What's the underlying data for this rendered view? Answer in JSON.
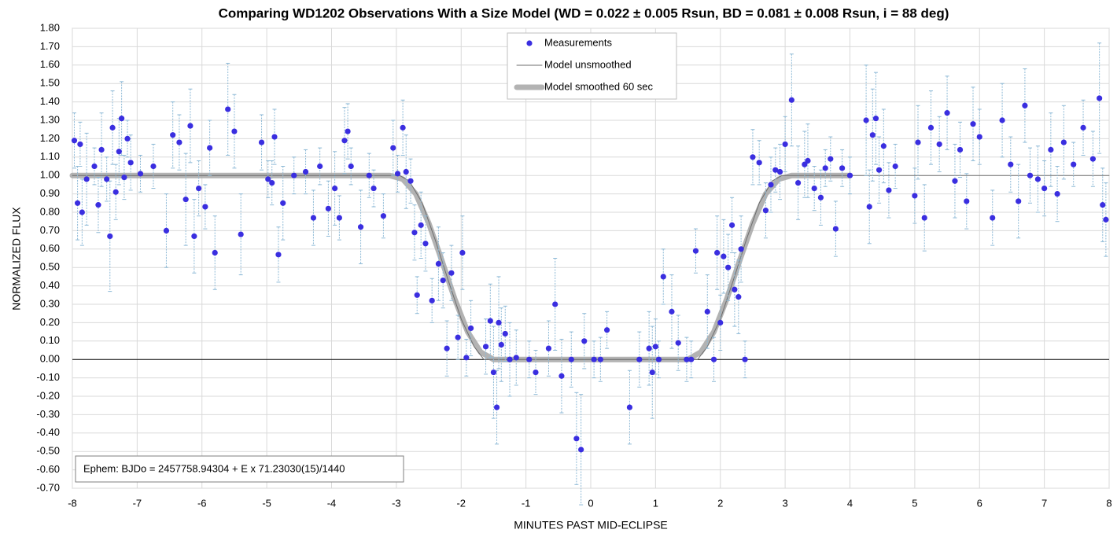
{
  "chart_data": {
    "type": "scatter",
    "title": "Comparing WD1202 Observations With a Size Model (WD = 0.022 ± 0.005 Rsun, BD = 0.081 ± 0.008 Rsun, i = 88 deg)",
    "x_label": "MINUTES PAST MID-ECLIPSE",
    "y_label": "NORMALIZED FLUX",
    "annotation": "Ephem: BJDo = 2457758.94304 + E x 71.23030(15)/1440",
    "xlim": [
      -8,
      8
    ],
    "ylim": [
      -0.7,
      1.8
    ],
    "xticks": [
      -8,
      -7,
      -6,
      -5,
      -4,
      -3,
      -2,
      -1,
      0,
      1,
      2,
      3,
      4,
      5,
      6,
      7,
      8
    ],
    "yticks": [
      {
        "value": -0.7,
        "label": "-0.70"
      },
      {
        "value": -0.6,
        "label": "-0.60"
      },
      {
        "value": -0.5,
        "label": "-0.50"
      },
      {
        "value": -0.4,
        "label": "-0.40"
      },
      {
        "value": -0.3,
        "label": "-0.30"
      },
      {
        "value": -0.2,
        "label": "-0.20"
      },
      {
        "value": -0.1,
        "label": "-0.10"
      },
      {
        "value": 0,
        "label": "0.00"
      },
      {
        "value": 0.1,
        "label": "0.10"
      },
      {
        "value": 0.2,
        "label": "0.20"
      },
      {
        "value": 0.3,
        "label": "0.30"
      },
      {
        "value": 0.4,
        "label": "0.40"
      },
      {
        "value": 0.5,
        "label": "0.50"
      },
      {
        "value": 0.6,
        "label": "0.60"
      },
      {
        "value": 0.7,
        "label": "0.70"
      },
      {
        "value": 0.8,
        "label": "0.80"
      },
      {
        "value": 0.9,
        "label": "0.90"
      },
      {
        "value": 1,
        "label": "1.00"
      },
      {
        "value": 1.1,
        "label": "1.10"
      },
      {
        "value": 1.2,
        "label": "1.20"
      },
      {
        "value": 1.3,
        "label": "1.30"
      },
      {
        "value": 1.4,
        "label": "1.40"
      },
      {
        "value": 1.5,
        "label": "1.50"
      },
      {
        "value": 1.6,
        "label": "1.60"
      },
      {
        "value": 1.7,
        "label": "1.70"
      },
      {
        "value": 1.8,
        "label": "1.80"
      }
    ],
    "grid": true,
    "legend": "top",
    "series": [
      {
        "name": "Measurements",
        "color": "#3a2ee0",
        "error_color": "#8db9d6",
        "x": [
          -7.97,
          -7.92,
          -7.88,
          -7.85,
          -7.78,
          -7.66,
          -7.6,
          -7.55,
          -7.47,
          -7.42,
          -7.38,
          -7.33,
          -7.28,
          -7.24,
          -7.2,
          -7.15,
          -7.1,
          -6.95,
          -6.75,
          -6.55,
          -6.45,
          -6.35,
          -6.25,
          -6.18,
          -6.12,
          -6.05,
          -5.95,
          -5.88,
          -5.8,
          -5.6,
          -5.5,
          -5.4,
          -5.08,
          -4.98,
          -4.92,
          -4.88,
          -4.82,
          -4.75,
          -4.58,
          -4.4,
          -4.28,
          -4.18,
          -4.05,
          -3.95,
          -3.88,
          -3.8,
          -3.75,
          -3.7,
          -3.55,
          -3.42,
          -3.35,
          -3.2,
          -3.05,
          -2.98,
          -2.9,
          -2.85,
          -2.78,
          -2.72,
          -2.68,
          -2.62,
          -2.55,
          -2.45,
          -2.35,
          -2.28,
          -2.22,
          -2.15,
          -2.05,
          -1.98,
          -1.92,
          -1.85,
          -1.62,
          -1.55,
          -1.5,
          -1.45,
          -1.42,
          -1.38,
          -1.32,
          -1.25,
          -1.15,
          -0.95,
          -0.85,
          -0.65,
          -0.55,
          -0.45,
          -0.3,
          -0.22,
          -0.15,
          -0.1,
          0.05,
          0.15,
          0.25,
          0.6,
          0.75,
          0.9,
          0.95,
          1.0,
          1.05,
          1.12,
          1.25,
          1.35,
          1.48,
          1.55,
          1.62,
          1.8,
          1.9,
          1.95,
          2.0,
          2.05,
          2.12,
          2.18,
          2.22,
          2.28,
          2.32,
          2.38,
          2.5,
          2.6,
          2.7,
          2.78,
          2.85,
          2.92,
          3.0,
          3.1,
          3.2,
          3.3,
          3.35,
          3.45,
          3.55,
          3.62,
          3.7,
          3.78,
          3.88,
          4.0,
          4.25,
          4.3,
          4.35,
          4.4,
          4.45,
          4.52,
          4.6,
          4.7,
          5.0,
          5.05,
          5.15,
          5.25,
          5.38,
          5.5,
          5.62,
          5.7,
          5.8,
          5.9,
          6.0,
          6.2,
          6.35,
          6.48,
          6.6,
          6.7,
          6.78,
          6.9,
          7.0,
          7.1,
          7.2,
          7.3,
          7.45,
          7.6,
          7.75,
          7.85,
          7.9,
          7.95
        ],
        "values": [
          1.19,
          0.85,
          1.17,
          0.8,
          0.98,
          1.05,
          0.84,
          1.14,
          0.98,
          0.67,
          1.26,
          0.91,
          1.13,
          1.31,
          0.99,
          1.2,
          1.07,
          1.01,
          1.05,
          0.7,
          1.22,
          1.18,
          0.87,
          1.27,
          0.67,
          0.93,
          0.83,
          1.15,
          0.58,
          1.36,
          1.24,
          0.68,
          1.18,
          0.98,
          0.96,
          1.21,
          0.57,
          0.85,
          1.0,
          1.02,
          0.77,
          1.05,
          0.82,
          0.93,
          0.77,
          1.19,
          1.24,
          1.05,
          0.72,
          1.0,
          0.93,
          0.78,
          1.15,
          1.01,
          1.26,
          1.02,
          0.97,
          0.69,
          0.35,
          0.73,
          0.63,
          0.32,
          0.52,
          0.43,
          0.06,
          0.47,
          0.12,
          0.58,
          0.01,
          0.17,
          0.07,
          0.21,
          -0.07,
          -0.26,
          0.2,
          0.08,
          0.14,
          0.0,
          0.01,
          0.0,
          -0.07,
          0.06,
          0.3,
          -0.09,
          0.0,
          -0.43,
          -0.49,
          0.1,
          0.0,
          0.0,
          0.16,
          -0.26,
          0.0,
          0.06,
          -0.07,
          0.07,
          0.0,
          0.45,
          0.26,
          0.09,
          0.0,
          0.0,
          0.59,
          0.26,
          0.0,
          0.58,
          0.2,
          0.56,
          0.5,
          0.73,
          0.38,
          0.34,
          0.6,
          0.0,
          1.1,
          1.07,
          0.81,
          0.95,
          1.03,
          1.02,
          1.17,
          1.41,
          0.96,
          1.06,
          1.08,
          0.93,
          0.88,
          1.04,
          1.09,
          0.71,
          1.04,
          1.0,
          1.3,
          0.83,
          1.22,
          1.31,
          1.03,
          1.16,
          0.92,
          1.05,
          0.89,
          1.18,
          0.77,
          1.26,
          1.17,
          1.34,
          0.97,
          1.14,
          0.86,
          1.28,
          1.21,
          0.77,
          1.3,
          1.06,
          0.86,
          1.38,
          1.0,
          0.98,
          0.93,
          1.14,
          0.9,
          1.18,
          1.06,
          1.26,
          1.09,
          1.42,
          0.84,
          0.76
        ],
        "errors": [
          0.15,
          0.2,
          0.12,
          0.18,
          0.25,
          0.1,
          0.15,
          0.2,
          0.12,
          0.3,
          0.2,
          0.15,
          0.18,
          0.2,
          0.12,
          0.1,
          0.15,
          0.1,
          0.12,
          0.2,
          0.18,
          0.15,
          0.25,
          0.2,
          0.2,
          0.15,
          0.12,
          0.15,
          0.2,
          0.25,
          0.2,
          0.22,
          0.15,
          0.1,
          0.12,
          0.15,
          0.15,
          0.2,
          0.1,
          0.12,
          0.15,
          0.1,
          0.15,
          0.2,
          0.12,
          0.18,
          0.15,
          0.1,
          0.2,
          0.12,
          0.1,
          0.12,
          0.15,
          0.1,
          0.15,
          0.2,
          0.12,
          0.15,
          0.1,
          0.18,
          0.15,
          0.12,
          0.2,
          0.15,
          0.15,
          0.15,
          0.12,
          0.2,
          0.1,
          0.15,
          0.15,
          0.2,
          0.25,
          0.2,
          0.25,
          0.2,
          0.15,
          0.2,
          0.15,
          0.1,
          0.12,
          0.15,
          0.25,
          0.2,
          0.15,
          0.25,
          0.3,
          0.15,
          0.1,
          0.12,
          0.1,
          0.2,
          0.15,
          0.2,
          0.25,
          0.15,
          0.1,
          0.15,
          0.2,
          0.15,
          0.12,
          0.1,
          0.12,
          0.2,
          0.12,
          0.2,
          0.15,
          0.2,
          0.18,
          0.15,
          0.2,
          0.2,
          0.18,
          0.1,
          0.15,
          0.12,
          0.15,
          0.15,
          0.12,
          0.15,
          0.15,
          0.25,
          0.2,
          0.18,
          0.2,
          0.12,
          0.15,
          0.1,
          0.12,
          0.15,
          0.1,
          0.1,
          0.3,
          0.2,
          0.25,
          0.25,
          0.18,
          0.2,
          0.15,
          0.12,
          0.15,
          0.2,
          0.18,
          0.2,
          0.15,
          0.2,
          0.2,
          0.15,
          0.15,
          0.2,
          0.15,
          0.15,
          0.2,
          0.15,
          0.2,
          0.2,
          0.15,
          0.18,
          0.15,
          0.2,
          0.15,
          0.2,
          0.12,
          0.15,
          0.15,
          0.3,
          0.2,
          0.2
        ]
      },
      {
        "name": "Model unsmoothed",
        "color": "#6e6e6e",
        "line_width": 1,
        "x": [
          -8,
          -2.95,
          -2.8,
          -2.6,
          -2.4,
          -2.2,
          -2.0,
          -1.8,
          -1.65,
          1.65,
          1.8,
          2.0,
          2.2,
          2.4,
          2.6,
          2.8,
          2.95,
          8
        ],
        "values": [
          1,
          1,
          0.97,
          0.85,
          0.65,
          0.43,
          0.22,
          0.07,
          0,
          0,
          0.07,
          0.22,
          0.43,
          0.65,
          0.85,
          0.97,
          1,
          1
        ]
      },
      {
        "name": "Model smoothed 60 sec",
        "color": "#a6a6a6",
        "line_width": 7,
        "x": [
          -8,
          -3.1,
          -2.9,
          -2.7,
          -2.5,
          -2.3,
          -2.1,
          -1.9,
          -1.7,
          -1.5,
          1.5,
          1.7,
          1.9,
          2.1,
          2.3,
          2.5,
          2.7,
          2.9,
          3.1,
          4.0
        ],
        "values": [
          1,
          1,
          0.98,
          0.9,
          0.74,
          0.54,
          0.33,
          0.15,
          0.04,
          0,
          0,
          0.04,
          0.15,
          0.33,
          0.54,
          0.74,
          0.9,
          0.98,
          1,
          1
        ]
      }
    ]
  }
}
